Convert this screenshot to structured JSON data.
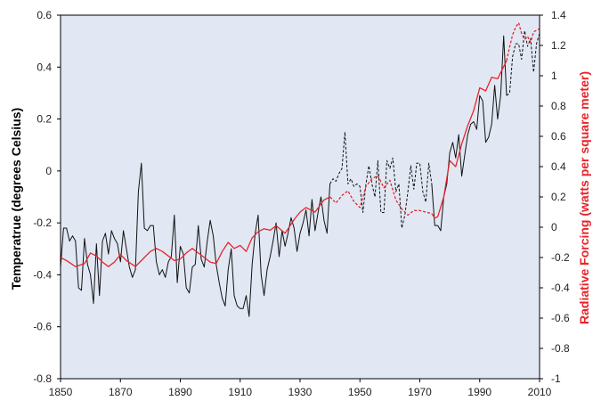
{
  "chart_data": {
    "type": "line",
    "title": "",
    "xlabel": "",
    "ylabel": "Temperatrue (degrees Celsius)",
    "y2label": "Radiative Forcing (watts per square meter)",
    "xlim": [
      1850,
      2010
    ],
    "ylim": [
      -0.8,
      0.6
    ],
    "y2lim": [
      -1.0,
      1.4
    ],
    "x_ticks": [
      "1850",
      "1870",
      "1890",
      "1910",
      "1930",
      "1950",
      "1970",
      "1990",
      "2010"
    ],
    "y_ticks": [
      "-0.8",
      "-0.6",
      "-0.4",
      "-0.2",
      "0",
      "0.2",
      "0.4",
      "0.6"
    ],
    "y2_ticks": [
      "-1",
      "-0.8",
      "-0.6",
      "-0.4",
      "-0.2",
      "0",
      "0.2",
      "0.4",
      "0.6",
      "0.8",
      "1",
      "1.2",
      "1.4"
    ],
    "grid": false,
    "legend": "none",
    "background_color": "#e1e8f4",
    "colors": {
      "temperature": "#111111",
      "forcing": "#e8242a"
    },
    "series": [
      {
        "axis": "left",
        "style": "solid",
        "x": [
          1850,
          1851,
          1852,
          1853,
          1854,
          1855,
          1856,
          1857,
          1858,
          1859,
          1860,
          1861,
          1862,
          1863,
          1864,
          1865,
          1866,
          1867,
          1868,
          1869,
          1870,
          1871,
          1872,
          1873,
          1874,
          1875,
          1876,
          1877,
          1878,
          1879,
          1880,
          1881,
          1882,
          1883,
          1884,
          1885,
          1886,
          1887,
          1888,
          1889,
          1890,
          1891,
          1892,
          1893,
          1894,
          1895,
          1896,
          1897,
          1898,
          1899,
          1900,
          1901,
          1902,
          1903,
          1904,
          1905,
          1906,
          1907,
          1908,
          1909,
          1910,
          1911,
          1912,
          1913,
          1914,
          1915,
          1916,
          1917,
          1918,
          1919,
          1920,
          1921,
          1922,
          1923,
          1924,
          1925,
          1926,
          1927,
          1928,
          1929,
          1930,
          1931,
          1932,
          1933,
          1934,
          1935,
          1936,
          1937,
          1938,
          1939,
          1940
        ],
        "values": [
          -0.37,
          -0.22,
          -0.22,
          -0.27,
          -0.25,
          -0.27,
          -0.45,
          -0.46,
          -0.26,
          -0.36,
          -0.4,
          -0.51,
          -0.28,
          -0.48,
          -0.27,
          -0.24,
          -0.32,
          -0.23,
          -0.26,
          -0.28,
          -0.35,
          -0.23,
          -0.3,
          -0.37,
          -0.41,
          -0.38,
          -0.08,
          0.03,
          -0.22,
          -0.23,
          -0.21,
          -0.21,
          -0.35,
          -0.4,
          -0.38,
          -0.41,
          -0.35,
          -0.33,
          -0.17,
          -0.43,
          -0.29,
          -0.32,
          -0.45,
          -0.47,
          -0.37,
          -0.36,
          -0.21,
          -0.34,
          -0.37,
          -0.27,
          -0.19,
          -0.25,
          -0.36,
          -0.43,
          -0.49,
          -0.52,
          -0.38,
          -0.3,
          -0.48,
          -0.52,
          -0.53,
          -0.53,
          -0.48,
          -0.56,
          -0.36,
          -0.24,
          -0.17,
          -0.4,
          -0.48,
          -0.38,
          -0.33,
          -0.27,
          -0.2,
          -0.33,
          -0.23,
          -0.29,
          -0.24,
          -0.18,
          -0.22,
          -0.31,
          -0.24,
          -0.2,
          -0.15,
          -0.25,
          -0.11,
          -0.23,
          -0.16,
          -0.1,
          -0.19,
          -0.24,
          -0.05
        ]
      },
      {
        "axis": "left",
        "style": "dashed",
        "x": [
          1940,
          1941,
          1942,
          1943,
          1944,
          1945,
          1946,
          1947,
          1948,
          1949,
          1950,
          1951,
          1952,
          1953,
          1954,
          1955,
          1956,
          1957,
          1958,
          1959,
          1960,
          1961,
          1962,
          1963,
          1964,
          1965,
          1966,
          1967,
          1968,
          1969,
          1970,
          1971,
          1972,
          1973,
          1974
        ],
        "values": [
          -0.05,
          -0.03,
          -0.04,
          -0.01,
          0.01,
          0.15,
          -0.05,
          -0.03,
          -0.06,
          -0.05,
          -0.06,
          -0.16,
          -0.05,
          0.02,
          -0.05,
          -0.1,
          0.04,
          -0.16,
          -0.16,
          0.04,
          0.01,
          0.05,
          -0.08,
          -0.05,
          -0.22,
          -0.17,
          -0.08,
          0.02,
          -0.07,
          0.03,
          0.03,
          -0.08,
          -0.12,
          0.03,
          -0.05
        ]
      },
      {
        "axis": "left",
        "style": "solid",
        "x": [
          1974,
          1975,
          1976,
          1977,
          1978,
          1979,
          1980,
          1981,
          1982,
          1983,
          1984,
          1985,
          1986,
          1987,
          1988,
          1989,
          1990,
          1991,
          1992,
          1993,
          1994,
          1995,
          1996,
          1997,
          1998,
          1999
        ],
        "values": [
          -0.05,
          -0.21,
          -0.21,
          -0.23,
          -0.1,
          -0.05,
          0.07,
          0.11,
          0.05,
          0.14,
          -0.02,
          0.06,
          0.14,
          0.18,
          0.19,
          0.16,
          0.29,
          0.27,
          0.11,
          0.13,
          0.18,
          0.33,
          0.2,
          0.29,
          0.52,
          0.29
        ]
      },
      {
        "axis": "left",
        "style": "dashed",
        "x": [
          1999,
          2000,
          2001,
          2002,
          2003,
          2004,
          2005,
          2006,
          2007,
          2008,
          2009,
          2010
        ],
        "values": [
          0.29,
          0.3,
          0.44,
          0.49,
          0.49,
          0.43,
          0.54,
          0.48,
          0.51,
          0.38,
          0.49,
          0.53
        ]
      },
      {
        "axis": "right",
        "style": "solid",
        "x": [
          1850,
          1852,
          1855,
          1858,
          1860,
          1862,
          1864,
          1866,
          1868,
          1870,
          1872,
          1875,
          1878,
          1880,
          1882,
          1884,
          1886,
          1888,
          1890,
          1892,
          1894,
          1896,
          1898,
          1900,
          1902,
          1904,
          1906,
          1908,
          1910,
          1912,
          1914,
          1916,
          1918,
          1920,
          1922,
          1925,
          1928,
          1930,
          1932,
          1935,
          1938,
          1940
        ],
        "values": [
          -0.2,
          -0.22,
          -0.26,
          -0.24,
          -0.17,
          -0.19,
          -0.23,
          -0.26,
          -0.23,
          -0.18,
          -0.22,
          -0.26,
          -0.2,
          -0.16,
          -0.14,
          -0.16,
          -0.19,
          -0.22,
          -0.21,
          -0.17,
          -0.14,
          -0.17,
          -0.2,
          -0.23,
          -0.24,
          -0.16,
          -0.1,
          -0.14,
          -0.12,
          -0.16,
          -0.07,
          -0.03,
          -0.01,
          -0.02,
          0.01,
          -0.04,
          0.05,
          0.1,
          0.13,
          0.1,
          0.18,
          0.2
        ]
      },
      {
        "axis": "right",
        "style": "dashed",
        "x": [
          1940,
          1942,
          1944,
          1946,
          1948,
          1950,
          1952,
          1954,
          1956,
          1958,
          1960,
          1962,
          1964,
          1966,
          1968,
          1970,
          1972,
          1974
        ],
        "values": [
          0.2,
          0.16,
          0.21,
          0.24,
          0.17,
          0.13,
          0.27,
          0.32,
          0.34,
          0.26,
          0.31,
          0.18,
          0.12,
          0.08,
          0.11,
          0.11,
          0.1,
          0.09
        ]
      },
      {
        "axis": "right",
        "style": "solid",
        "x": [
          1974,
          1975,
          1976,
          1978,
          1980,
          1982,
          1984,
          1986,
          1988,
          1990,
          1992,
          1994,
          1996,
          1998,
          1999
        ],
        "values": [
          0.09,
          0.06,
          0.07,
          0.2,
          0.44,
          0.4,
          0.55,
          0.67,
          0.77,
          0.92,
          0.9,
          0.99,
          0.98,
          1.06,
          1.1
        ]
      },
      {
        "axis": "right",
        "style": "dashed",
        "x": [
          1999,
          2000,
          2001,
          2002,
          2003,
          2004,
          2005,
          2006,
          2007,
          2008,
          2009,
          2010
        ],
        "values": [
          1.1,
          1.19,
          1.27,
          1.32,
          1.35,
          1.28,
          1.24,
          1.26,
          1.22,
          1.29,
          1.3,
          1.31
        ]
      }
    ]
  }
}
